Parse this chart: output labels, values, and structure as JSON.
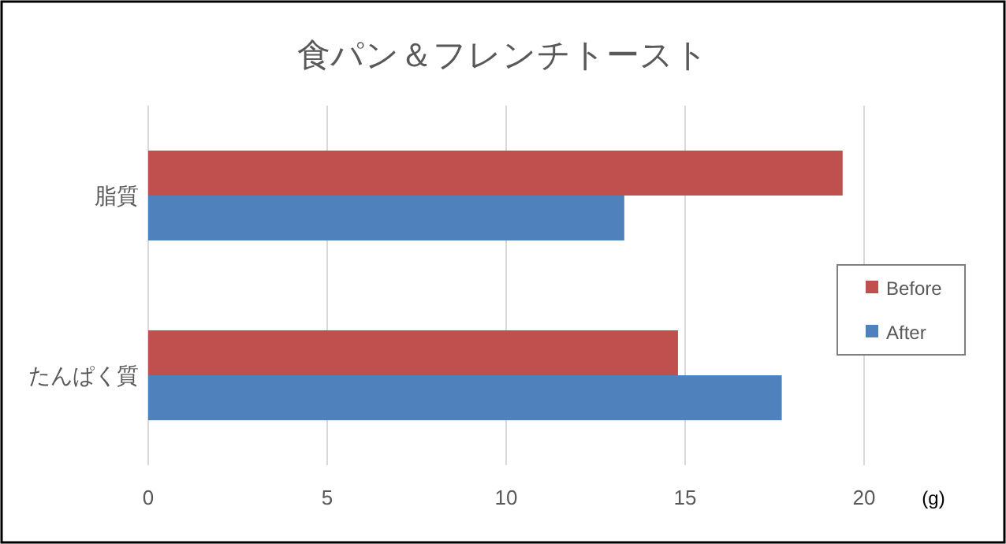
{
  "chart_data": {
    "type": "bar",
    "orientation": "horizontal",
    "title": "食パン＆フレンチトースト",
    "xlabel": "(g)",
    "categories": [
      "脂質",
      "たんぱく質"
    ],
    "series": [
      {
        "name": "Before",
        "color": "#c0504d",
        "values": [
          19.4,
          14.8
        ]
      },
      {
        "name": "After",
        "color": "#4f81bd",
        "values": [
          13.3,
          17.7
        ]
      }
    ],
    "xlim": [
      0,
      20
    ],
    "xticks": [
      0,
      5,
      10,
      15,
      20
    ],
    "grid": "x",
    "legend": "right"
  }
}
